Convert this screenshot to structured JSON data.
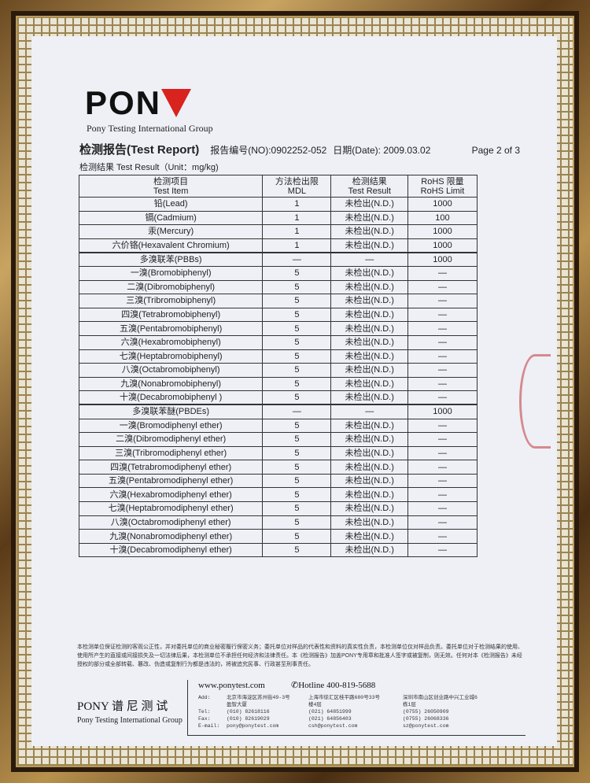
{
  "logo": {
    "text": "PONY",
    "subtitle": "Pony Testing International Group"
  },
  "report": {
    "title": "检测报告(Test Report)",
    "number": "报告编号(NO):0902252-052",
    "date": "日期(Date): 2009.03.02",
    "page": "Page 2 of 3"
  },
  "unit_label": "检测结果 Test Result（Unit：mg/kg)",
  "table": {
    "headers": [
      [
        "检测项目",
        "Test Item"
      ],
      [
        "方法检出限",
        "MDL"
      ],
      [
        "检测结果",
        "Test Result"
      ],
      [
        "RoHS 限量",
        "RoHS Limit"
      ]
    ],
    "rows": [
      [
        "铅(Lead)",
        "1",
        "未检出(N.D.)",
        "1000"
      ],
      [
        "镉(Cadmium)",
        "1",
        "未检出(N.D.)",
        "100"
      ],
      [
        "汞(Mercury)",
        "1",
        "未检出(N.D.)",
        "1000"
      ],
      [
        "六价铬(Hexavalent Chromium)",
        "1",
        "未检出(N.D.)",
        "1000"
      ],
      [
        "多溴联苯(PBBs)",
        "—",
        "—",
        "1000"
      ],
      [
        "一溴(Bromobiphenyl)",
        "5",
        "未检出(N.D.)",
        "—"
      ],
      [
        "二溴(Dibromobiphenyl)",
        "5",
        "未检出(N.D.)",
        "—"
      ],
      [
        "三溴(Tribromobiphenyl)",
        "5",
        "未检出(N.D.)",
        "—"
      ],
      [
        "四溴(Tetrabromobiphenyl)",
        "5",
        "未检出(N.D.)",
        "—"
      ],
      [
        "五溴(Pentabromobiphenyl)",
        "5",
        "未检出(N.D.)",
        "—"
      ],
      [
        "六溴(Hexabromobiphenyl)",
        "5",
        "未检出(N.D.)",
        "—"
      ],
      [
        "七溴(Heptabromobiphenyl)",
        "5",
        "未检出(N.D.)",
        "—"
      ],
      [
        "八溴(Octabromobiphenyl)",
        "5",
        "未检出(N.D.)",
        "—"
      ],
      [
        "九溴(Nonabromobiphenyl)",
        "5",
        "未检出(N.D.)",
        "—"
      ],
      [
        "十溴(Decabromobiphenyl )",
        "5",
        "未检出(N.D.)",
        "—"
      ],
      [
        "多溴联苯醚(PBDEs)",
        "—",
        "—",
        "1000"
      ],
      [
        "一溴(Bromodiphenyl ether)",
        "5",
        "未检出(N.D.)",
        "—"
      ],
      [
        "二溴(Dibromodiphenyl ether)",
        "5",
        "未检出(N.D.)",
        "—"
      ],
      [
        "三溴(Tribromodiphenyl ether)",
        "5",
        "未检出(N.D.)",
        "—"
      ],
      [
        "四溴(Tetrabromodiphenyl ether)",
        "5",
        "未检出(N.D.)",
        "—"
      ],
      [
        "五溴(Pentabromodiphenyl ether)",
        "5",
        "未检出(N.D.)",
        "—"
      ],
      [
        "六溴(Hexabromodiphenyl ether)",
        "5",
        "未检出(N.D.)",
        "—"
      ],
      [
        "七溴(Heptabromodiphenyl ether)",
        "5",
        "未检出(N.D.)",
        "—"
      ],
      [
        "八溴(Octabromodiphenyl ether)",
        "5",
        "未检出(N.D.)",
        "—"
      ],
      [
        "九溴(Nonabromodiphenyl ether)",
        "5",
        "未检出(N.D.)",
        "—"
      ],
      [
        "十溴(Decabromodiphenyl ether)",
        "5",
        "未检出(N.D.)",
        "—"
      ]
    ]
  },
  "disclaimer": "本检测单位保证检测的客观公正性，并对委托单位的商业秘密履行保密义务；委托单位对样品的代表性和资料的真实性负责，本检测单位仅对样品负责。委托单位对于检测结果的使用、使用所产生的直接或间接损失及一切法律后果，本检测单位不承担任何经济和法律责任。本《检测报告》加盖PONY专用章和批准人签字或被复制，则无效。任何对本《检测报告》未经授权的部分或全部转载、篡改、伪造或复制行为都是违法的，将被追究民事、行政甚至刑事责任。",
  "footer": {
    "brand": "PONY 谱 尼 测 试",
    "brand_sub": "Pony Testing International Group",
    "website": "www.ponytest.com",
    "hotline": "✆Hotline 400-819-5688",
    "labels": "Add:\n\nTel:\nFax:\nE-mail:",
    "offices": [
      "北京市海淀区苏州街49-3号\n盈智大厦\n(010) 82618116\n(010) 82619029\npony@ponytest.com",
      "上海市徐汇区桂平路680号33号\n楼4层\n(021) 64851999\n(021) 64856403\ncsh@ponytest.com",
      "深圳市南山区创业路中兴工业城6\n栋1层\n(0755) 26050909\n(0755) 26068336\nsz@ponytest.com"
    ]
  }
}
